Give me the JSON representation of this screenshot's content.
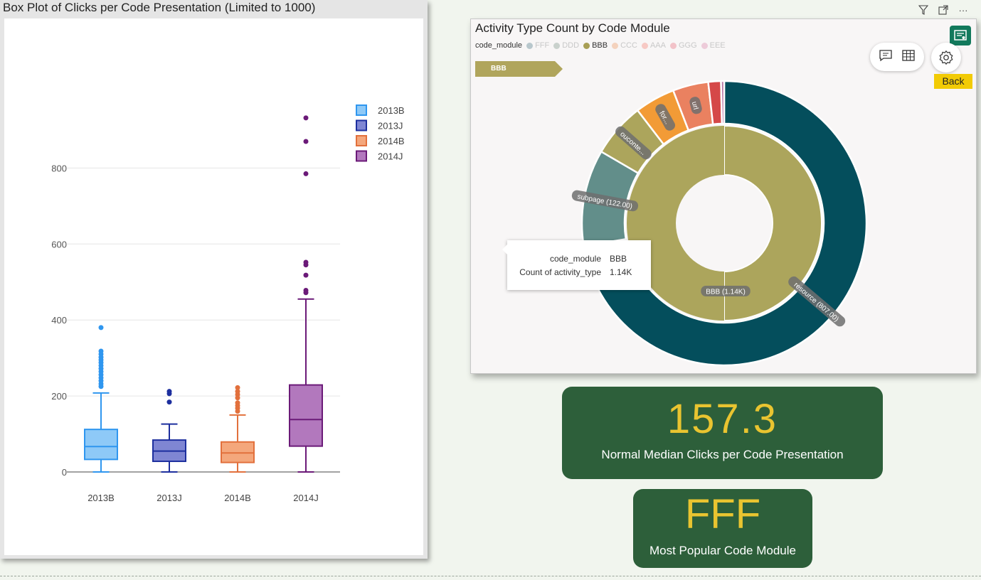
{
  "boxplot": {
    "title": "Box Plot of Clicks per Code Presentation (Limited to 1000)",
    "legend": [
      {
        "name": "2013B",
        "fill": "#8ec9f7",
        "stroke": "#2f96ef"
      },
      {
        "name": "2013J",
        "fill": "#7f86d3",
        "stroke": "#1d2f9e"
      },
      {
        "name": "2014B",
        "fill": "#f4a77c",
        "stroke": "#e2703c"
      },
      {
        "name": "2014J",
        "fill": "#b278bd",
        "stroke": "#6b1a78"
      }
    ]
  },
  "chart_data": [
    {
      "type": "box",
      "title": "Box Plot of Clicks per Code Presentation (Limited to 1000)",
      "xlabel": "",
      "ylabel": "",
      "categories": [
        "2013B",
        "2013J",
        "2014B",
        "2014J"
      ],
      "yticks": [
        0,
        200,
        400,
        600,
        800
      ],
      "ylim": [
        -20,
        1000
      ],
      "grid": true,
      "legend_position": "top-right",
      "boxes": [
        {
          "name": "2013B",
          "min": 0,
          "q1": 33,
          "median": 67,
          "q3": 112,
          "max": 208,
          "outliers": [
            225,
            232,
            240,
            248,
            256,
            264,
            272,
            280,
            288,
            295,
            302,
            310,
            318,
            380
          ]
        },
        {
          "name": "2013J",
          "min": 0,
          "q1": 28,
          "median": 55,
          "q3": 84,
          "max": 126,
          "outliers": [
            184,
            206,
            212
          ]
        },
        {
          "name": "2014B",
          "min": 0,
          "q1": 25,
          "median": 50,
          "q3": 79,
          "max": 150,
          "outliers": [
            160,
            168,
            175,
            182,
            195,
            204,
            212,
            222
          ]
        },
        {
          "name": "2014J",
          "min": 0,
          "q1": 68,
          "median": 138,
          "q3": 229,
          "max": 455,
          "outliers": [
            472,
            478,
            518,
            545,
            552,
            785,
            870,
            932
          ]
        }
      ]
    },
    {
      "type": "sunburst",
      "title": "Activity Type Count by Code Module",
      "legend_title": "code_module",
      "legend": [
        {
          "name": "FFF",
          "color": "#b8c7cc",
          "faded": true
        },
        {
          "name": "DDD",
          "color": "#c9d1cc",
          "faded": true
        },
        {
          "name": "BBB",
          "color": "#a89f55",
          "faded": false
        },
        {
          "name": "CCC",
          "color": "#f4d2bd",
          "faded": true
        },
        {
          "name": "AAA",
          "color": "#f7c9c4",
          "faded": true
        },
        {
          "name": "GGG",
          "color": "#f2c2c8",
          "faded": true
        },
        {
          "name": "EEE",
          "color": "#edcbd9",
          "faded": true
        }
      ],
      "center": {
        "label": "BBB (1.14K)",
        "value": 1140,
        "color": "#aca55c"
      },
      "segments": [
        {
          "label": "resource (807.00)",
          "value": 807,
          "color": "#044e5c"
        },
        {
          "label": "subpage (122.00)",
          "value": 122,
          "color": "#628e8a"
        },
        {
          "label": "oucontent",
          "value": 69,
          "color": "#aca55c"
        },
        {
          "label": "forumng",
          "value": 51,
          "color": "#f29b36"
        },
        {
          "label": "url",
          "value": 45,
          "color": "#ea8160"
        },
        {
          "label": "",
          "value": 16,
          "color": "#d54848"
        },
        {
          "label": "",
          "value": 4,
          "color": "#b879a6"
        }
      ],
      "legend_position": "top-left"
    }
  ],
  "donut": {
    "title": "Activity Type Count by Code Module",
    "breadcrumb": "BBB",
    "legend_title": "code_module"
  },
  "tooltip": {
    "rows": [
      {
        "key": "code_module",
        "value": "BBB"
      },
      {
        "key": "Count of activity_type",
        "value": "1.14K"
      }
    ]
  },
  "controls": {
    "back_label": "Back",
    "more_label": "···"
  },
  "kpi": {
    "median_value": "157.3",
    "median_label": "Normal Median Clicks per Code Presentation",
    "popular_value": "FFF",
    "popular_label": "Most Popular Code Module"
  }
}
